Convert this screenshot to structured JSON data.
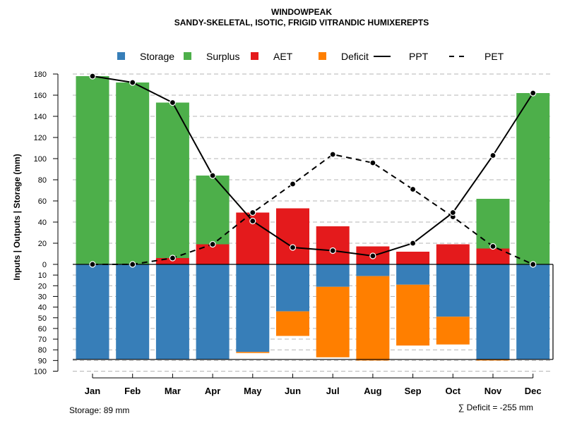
{
  "colors": {
    "storage": "#377eb8",
    "surplus": "#4daf4a",
    "aet": "#e41a1c",
    "deficit": "#ff7f00",
    "line": "#000000",
    "grid": "#b4b4b4"
  },
  "chart_data": {
    "type": "bar",
    "title": "WINDOWPEAK",
    "subtitle": "SANDY-SKELETAL, ISOTIC, FRIGID VITRANDIC HUMIXEREPTS",
    "ylabel": "Inputs | Outputs | Storage    (mm)",
    "legend": [
      {
        "key": "storage",
        "label": "Storage",
        "marker": "square"
      },
      {
        "key": "surplus",
        "label": "Surplus",
        "marker": "square"
      },
      {
        "key": "aet",
        "label": "AET",
        "marker": "square"
      },
      {
        "key": "deficit",
        "label": "Deficit",
        "marker": "square"
      },
      {
        "key": "ppt",
        "label": "PPT",
        "marker": "solid-line"
      },
      {
        "key": "pet",
        "label": "PET",
        "marker": "dashed-line"
      }
    ],
    "legend_position": "top",
    "categories": [
      "Jan",
      "Feb",
      "Mar",
      "Apr",
      "May",
      "Jun",
      "Jul",
      "Aug",
      "Sep",
      "Oct",
      "Nov",
      "Dec"
    ],
    "y_ticks_upper": [
      0,
      20,
      40,
      60,
      80,
      100,
      120,
      140,
      160,
      180
    ],
    "y_ticks_lower": [
      10,
      20,
      30,
      40,
      50,
      60,
      70,
      80,
      90,
      100
    ],
    "ylim_upper": [
      0,
      180
    ],
    "ylim_lower": [
      0,
      100
    ],
    "aet": [
      0,
      0,
      6,
      19,
      49,
      53,
      36,
      17,
      12,
      19,
      15,
      0
    ],
    "surplus": [
      178,
      172,
      147,
      65,
      0,
      0,
      0,
      0,
      0,
      0,
      47,
      162
    ],
    "storage": [
      89,
      89,
      89,
      89,
      82,
      44,
      21,
      11,
      19,
      49,
      89,
      89
    ],
    "deficit": [
      0,
      0,
      0,
      0,
      1,
      23,
      66,
      79,
      57,
      26,
      1,
      0
    ],
    "ppt": [
      178,
      172,
      153,
      84,
      41,
      16,
      13,
      8,
      20,
      49,
      103,
      162
    ],
    "pet": [
      0,
      0,
      6,
      19,
      49,
      76,
      104,
      96,
      71,
      45,
      17,
      0
    ],
    "storage_capacity": 89,
    "footer_left": "Storage: 89 mm",
    "footer_right": "∑ Deficit = -255 mm"
  }
}
